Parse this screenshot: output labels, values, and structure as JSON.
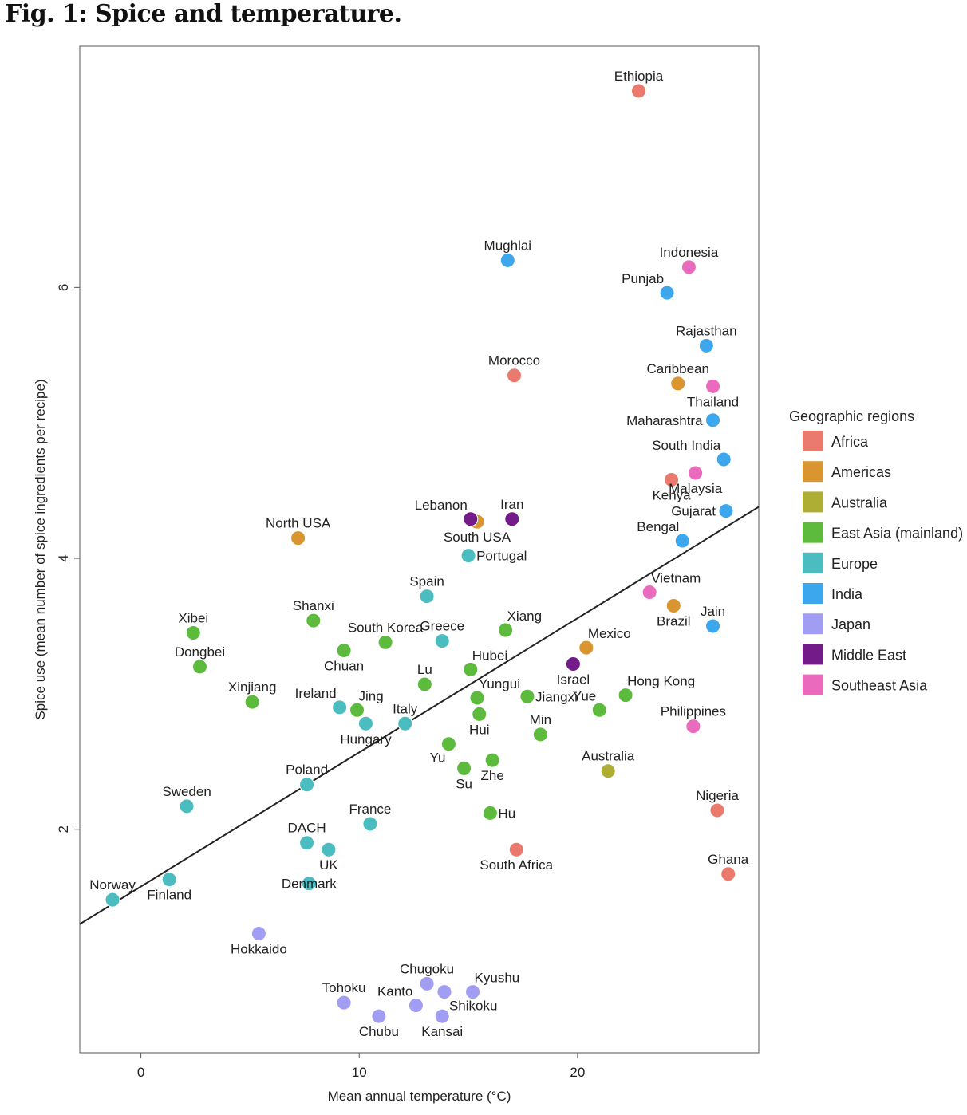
{
  "figure": {
    "title": "Fig. 1: Spice and temperature."
  },
  "chart_data": {
    "type": "scatter",
    "title": "Fig. 1: Spice and temperature.",
    "xlabel": "Mean annual temperature (°C)",
    "ylabel": "Spice use (mean number of spice ingredients per recipe)",
    "xlim": [
      -2.8,
      28.3
    ],
    "ylim": [
      0.35,
      7.78
    ],
    "xticks": [
      0,
      10,
      20
    ],
    "yticks": [
      2,
      4,
      6
    ],
    "regression_line": {
      "x": [
        -2.8,
        28.3
      ],
      "y": [
        1.3,
        4.38
      ]
    },
    "legend": {
      "title": "Geographic regions",
      "position": "right",
      "entries": [
        {
          "name": "Africa",
          "color": "#eb7a6e"
        },
        {
          "name": "Americas",
          "color": "#d9952f"
        },
        {
          "name": "Australia",
          "color": "#aeae35"
        },
        {
          "name": "East Asia (mainland)",
          "color": "#5cbb3c"
        },
        {
          "name": "Europe",
          "color": "#4bbdc0"
        },
        {
          "name": "India",
          "color": "#3ca7ec"
        },
        {
          "name": "Japan",
          "color": "#a09df3"
        },
        {
          "name": "Middle East",
          "color": "#741b8a"
        },
        {
          "name": "Southeast Asia",
          "color": "#ea6bbd"
        }
      ]
    },
    "points": [
      {
        "name": "Ethiopia",
        "region": "Africa",
        "x": 22.8,
        "y": 7.45,
        "lp": "above"
      },
      {
        "name": "Morocco",
        "region": "Africa",
        "x": 17.1,
        "y": 5.35,
        "lp": "above"
      },
      {
        "name": "Kenya",
        "region": "Africa",
        "x": 24.3,
        "y": 4.58,
        "lp": "below"
      },
      {
        "name": "Nigeria",
        "region": "Africa",
        "x": 26.4,
        "y": 2.14,
        "lp": "above"
      },
      {
        "name": "South Africa",
        "region": "Africa",
        "x": 17.2,
        "y": 1.85,
        "lp": "below"
      },
      {
        "name": "Ghana",
        "region": "Africa",
        "x": 26.9,
        "y": 1.67,
        "lp": "above"
      },
      {
        "name": "Caribbean",
        "region": "Americas",
        "x": 24.6,
        "y": 5.29,
        "lp": "above"
      },
      {
        "name": "North USA",
        "region": "Americas",
        "x": 7.2,
        "y": 4.15,
        "lp": "above"
      },
      {
        "name": "South USA",
        "region": "Americas",
        "x": 15.4,
        "y": 4.27,
        "lp": "below"
      },
      {
        "name": "Brazil",
        "region": "Americas",
        "x": 24.4,
        "y": 3.65,
        "lp": "below"
      },
      {
        "name": "Mexico",
        "region": "Americas",
        "x": 20.4,
        "y": 3.34,
        "lp": "above-right"
      },
      {
        "name": "Australia",
        "region": "Australia",
        "x": 21.4,
        "y": 2.43,
        "lp": "above"
      },
      {
        "name": "Xibei",
        "region": "East Asia (mainland)",
        "x": 2.4,
        "y": 3.45,
        "lp": "above"
      },
      {
        "name": "Dongbei",
        "region": "East Asia (mainland)",
        "x": 2.7,
        "y": 3.2,
        "lp": "above"
      },
      {
        "name": "Xinjiang",
        "region": "East Asia (mainland)",
        "x": 5.1,
        "y": 2.94,
        "lp": "above"
      },
      {
        "name": "Shanxi",
        "region": "East Asia (mainland)",
        "x": 7.9,
        "y": 3.54,
        "lp": "above"
      },
      {
        "name": "South Korea",
        "region": "East Asia (mainland)",
        "x": 11.2,
        "y": 3.38,
        "lp": "above"
      },
      {
        "name": "Chuan",
        "region": "East Asia (mainland)",
        "x": 9.3,
        "y": 3.32,
        "lp": "below"
      },
      {
        "name": "Jing",
        "region": "East Asia (mainland)",
        "x": 9.9,
        "y": 2.88,
        "lp": "above-right"
      },
      {
        "name": "Lu",
        "region": "East Asia (mainland)",
        "x": 13.0,
        "y": 3.07,
        "lp": "above"
      },
      {
        "name": "Xiang",
        "region": "East Asia (mainland)",
        "x": 16.7,
        "y": 3.47,
        "lp": "above-right"
      },
      {
        "name": "Hubei",
        "region": "East Asia (mainland)",
        "x": 15.1,
        "y": 3.18,
        "lp": "above-right"
      },
      {
        "name": "Yungui",
        "region": "East Asia (mainland)",
        "x": 15.4,
        "y": 2.97,
        "lp": "above-right"
      },
      {
        "name": "Jiangxi",
        "region": "East Asia (mainland)",
        "x": 17.7,
        "y": 2.98,
        "lp": "right"
      },
      {
        "name": "Hui",
        "region": "East Asia (mainland)",
        "x": 15.5,
        "y": 2.85,
        "lp": "below"
      },
      {
        "name": "Min",
        "region": "East Asia (mainland)",
        "x": 18.3,
        "y": 2.7,
        "lp": "above"
      },
      {
        "name": "Yue",
        "region": "East Asia (mainland)",
        "x": 21.0,
        "y": 2.88,
        "lp": "above-left"
      },
      {
        "name": "Hong Kong",
        "region": "East Asia (mainland)",
        "x": 22.2,
        "y": 2.99,
        "lp": "above-right"
      },
      {
        "name": "Yu",
        "region": "East Asia (mainland)",
        "x": 14.1,
        "y": 2.63,
        "lp": "below-left"
      },
      {
        "name": "Su",
        "region": "East Asia (mainland)",
        "x": 14.8,
        "y": 2.45,
        "lp": "below"
      },
      {
        "name": "Zhe",
        "region": "East Asia (mainland)",
        "x": 16.1,
        "y": 2.51,
        "lp": "below"
      },
      {
        "name": "Hu",
        "region": "East Asia (mainland)",
        "x": 16.0,
        "y": 2.12,
        "lp": "right"
      },
      {
        "name": "Portugal",
        "region": "Europe",
        "x": 15.0,
        "y": 4.02,
        "lp": "right"
      },
      {
        "name": "Spain",
        "region": "Europe",
        "x": 13.1,
        "y": 3.72,
        "lp": "above"
      },
      {
        "name": "Greece",
        "region": "Europe",
        "x": 13.8,
        "y": 3.39,
        "lp": "above"
      },
      {
        "name": "Ireland",
        "region": "Europe",
        "x": 9.1,
        "y": 2.9,
        "lp": "above-left"
      },
      {
        "name": "Hungary",
        "region": "Europe",
        "x": 10.3,
        "y": 2.78,
        "lp": "below"
      },
      {
        "name": "Italy",
        "region": "Europe",
        "x": 12.1,
        "y": 2.78,
        "lp": "above"
      },
      {
        "name": "Poland",
        "region": "Europe",
        "x": 7.6,
        "y": 2.33,
        "lp": "above"
      },
      {
        "name": "Sweden",
        "region": "Europe",
        "x": 2.1,
        "y": 2.17,
        "lp": "above"
      },
      {
        "name": "France",
        "region": "Europe",
        "x": 10.5,
        "y": 2.04,
        "lp": "above"
      },
      {
        "name": "DACH",
        "region": "Europe",
        "x": 7.6,
        "y": 1.9,
        "lp": "above"
      },
      {
        "name": "UK",
        "region": "Europe",
        "x": 8.6,
        "y": 1.85,
        "lp": "below"
      },
      {
        "name": "Denmark",
        "region": "Europe",
        "x": 7.7,
        "y": 1.6,
        "lp": "center"
      },
      {
        "name": "Finland",
        "region": "Europe",
        "x": 1.3,
        "y": 1.63,
        "lp": "below"
      },
      {
        "name": "Norway",
        "region": "Europe",
        "x": -1.3,
        "y": 1.48,
        "lp": "above"
      },
      {
        "name": "Mughlai",
        "region": "India",
        "x": 16.8,
        "y": 6.2,
        "lp": "above"
      },
      {
        "name": "Punjab",
        "region": "India",
        "x": 24.1,
        "y": 5.96,
        "lp": "above-left"
      },
      {
        "name": "Rajasthan",
        "region": "India",
        "x": 25.9,
        "y": 5.57,
        "lp": "above"
      },
      {
        "name": "Maharashtra",
        "region": "India",
        "x": 26.2,
        "y": 5.02,
        "lp": "left"
      },
      {
        "name": "South India",
        "region": "India",
        "x": 26.7,
        "y": 4.73,
        "lp": "above-left"
      },
      {
        "name": "Gujarat",
        "region": "India",
        "x": 26.8,
        "y": 4.35,
        "lp": "left"
      },
      {
        "name": "Bengal",
        "region": "India",
        "x": 24.8,
        "y": 4.13,
        "lp": "above-left"
      },
      {
        "name": "Jain",
        "region": "India",
        "x": 26.2,
        "y": 3.5,
        "lp": "above"
      },
      {
        "name": "Hokkaido",
        "region": "Japan",
        "x": 5.4,
        "y": 1.23,
        "lp": "below"
      },
      {
        "name": "Chugoku",
        "region": "Japan",
        "x": 13.1,
        "y": 0.86,
        "lp": "above"
      },
      {
        "name": "Kyushu",
        "region": "Japan",
        "x": 15.2,
        "y": 0.8,
        "lp": "above-right"
      },
      {
        "name": "Tohoku",
        "region": "Japan",
        "x": 9.3,
        "y": 0.72,
        "lp": "above"
      },
      {
        "name": "Kanto",
        "region": "Japan",
        "x": 12.6,
        "y": 0.7,
        "lp": "above-left"
      },
      {
        "name": "Shikoku",
        "region": "Japan",
        "x": 13.9,
        "y": 0.8,
        "lp": "below-right"
      },
      {
        "name": "Chubu",
        "region": "Japan",
        "x": 10.9,
        "y": 0.62,
        "lp": "below"
      },
      {
        "name": "Kansai",
        "region": "Japan",
        "x": 13.8,
        "y": 0.62,
        "lp": "below"
      },
      {
        "name": "Lebanon",
        "region": "Middle East",
        "x": 15.1,
        "y": 4.29,
        "lp": "above-left"
      },
      {
        "name": "Iran",
        "region": "Middle East",
        "x": 17.0,
        "y": 4.29,
        "lp": "above"
      },
      {
        "name": "Israel",
        "region": "Middle East",
        "x": 19.8,
        "y": 3.22,
        "lp": "below"
      },
      {
        "name": "Indonesia",
        "region": "Southeast Asia",
        "x": 25.1,
        "y": 6.15,
        "lp": "above"
      },
      {
        "name": "Thailand",
        "region": "Southeast Asia",
        "x": 26.2,
        "y": 5.27,
        "lp": "below"
      },
      {
        "name": "Malaysia",
        "region": "Southeast Asia",
        "x": 25.4,
        "y": 4.63,
        "lp": "below"
      },
      {
        "name": "Vietnam",
        "region": "Southeast Asia",
        "x": 23.3,
        "y": 3.75,
        "lp": "above-right"
      },
      {
        "name": "Philippines",
        "region": "Southeast Asia",
        "x": 25.3,
        "y": 2.76,
        "lp": "above"
      }
    ]
  }
}
